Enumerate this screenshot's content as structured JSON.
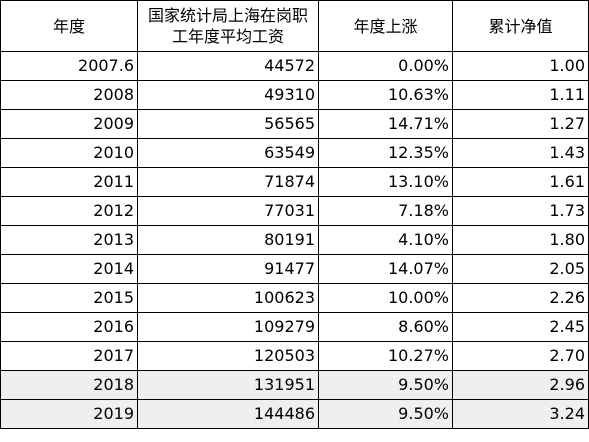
{
  "table": {
    "headers": [
      "年度",
      "国家统计局上海在岗职工年度平均工资",
      "年度上涨",
      "累计净值"
    ],
    "rows": [
      {
        "year": "2007.6",
        "salary": "44572",
        "growth": "0.00%",
        "nav": "1.00"
      },
      {
        "year": "2008",
        "salary": "49310",
        "growth": "10.63%",
        "nav": "1.11"
      },
      {
        "year": "2009",
        "salary": "56565",
        "growth": "14.71%",
        "nav": "1.27"
      },
      {
        "year": "2010",
        "salary": "63549",
        "growth": "12.35%",
        "nav": "1.43"
      },
      {
        "year": "2011",
        "salary": "71874",
        "growth": "13.10%",
        "nav": "1.61"
      },
      {
        "year": "2012",
        "salary": "77031",
        "growth": "7.18%",
        "nav": "1.73"
      },
      {
        "year": "2013",
        "salary": "80191",
        "growth": "4.10%",
        "nav": "1.80"
      },
      {
        "year": "2014",
        "salary": "91477",
        "growth": "14.07%",
        "nav": "2.05"
      },
      {
        "year": "2015",
        "salary": "100623",
        "growth": "10.00%",
        "nav": "2.26"
      },
      {
        "year": "2016",
        "salary": "109279",
        "growth": "8.60%",
        "nav": "2.45"
      },
      {
        "year": "2017",
        "salary": "120503",
        "growth": "10.27%",
        "nav": "2.70"
      },
      {
        "year": "2018",
        "salary": "131951",
        "growth": "9.50%",
        "nav": "2.96"
      },
      {
        "year": "2019",
        "salary": "144486",
        "growth": "9.50%",
        "nav": "3.24"
      }
    ],
    "highlighted_rows": [
      "2018",
      "2019"
    ],
    "colors": {
      "highlight_bg": "#efefef",
      "border": "#000000",
      "text": "#000000"
    }
  }
}
